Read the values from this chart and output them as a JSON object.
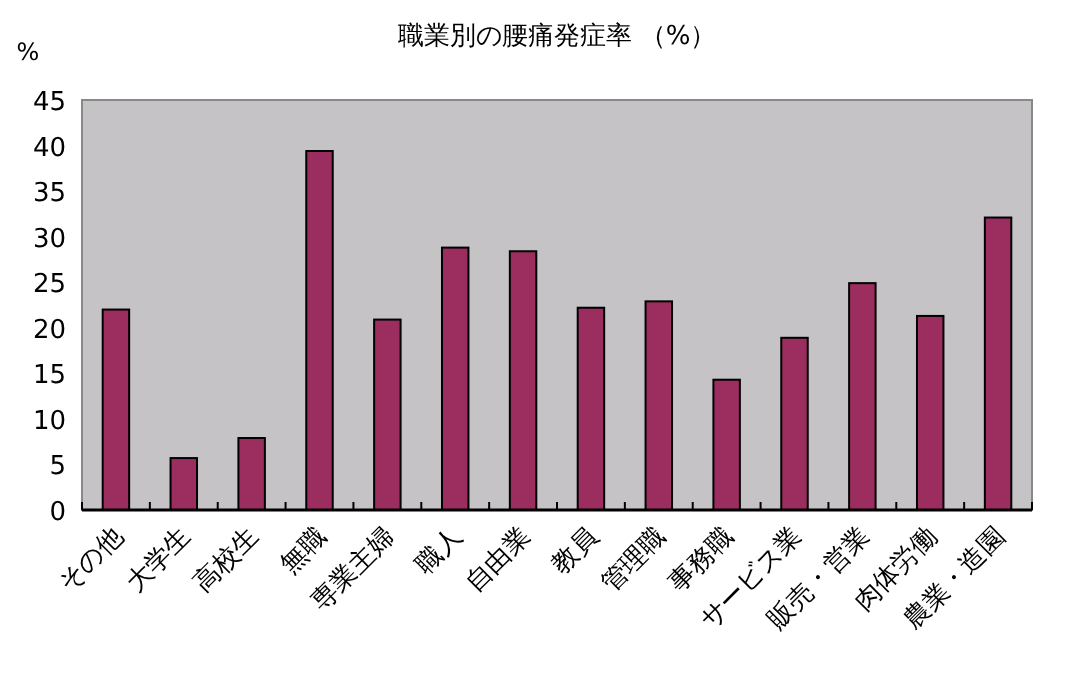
{
  "chart_data": {
    "type": "bar",
    "title": "職業別の腰痛発症率 （%）",
    "ylabel": "%",
    "categories": [
      "その他",
      "大学生",
      "高校生",
      "無職",
      "専業主婦",
      "職人",
      "自由業",
      "教員",
      "管理職",
      "事務職",
      "サービス業",
      "販売・営業",
      "肉体労働",
      "農業・造園"
    ],
    "values": [
      22,
      5.7,
      7.9,
      39.4,
      20.9,
      28.8,
      28.4,
      22.2,
      22.9,
      14.3,
      18.9,
      24.9,
      21.3,
      32.1
    ],
    "color": "#9b2d5f",
    "ylim": [
      0,
      45
    ],
    "yticks": [
      0,
      5,
      10,
      15,
      20,
      25,
      30,
      35,
      40,
      45
    ]
  }
}
